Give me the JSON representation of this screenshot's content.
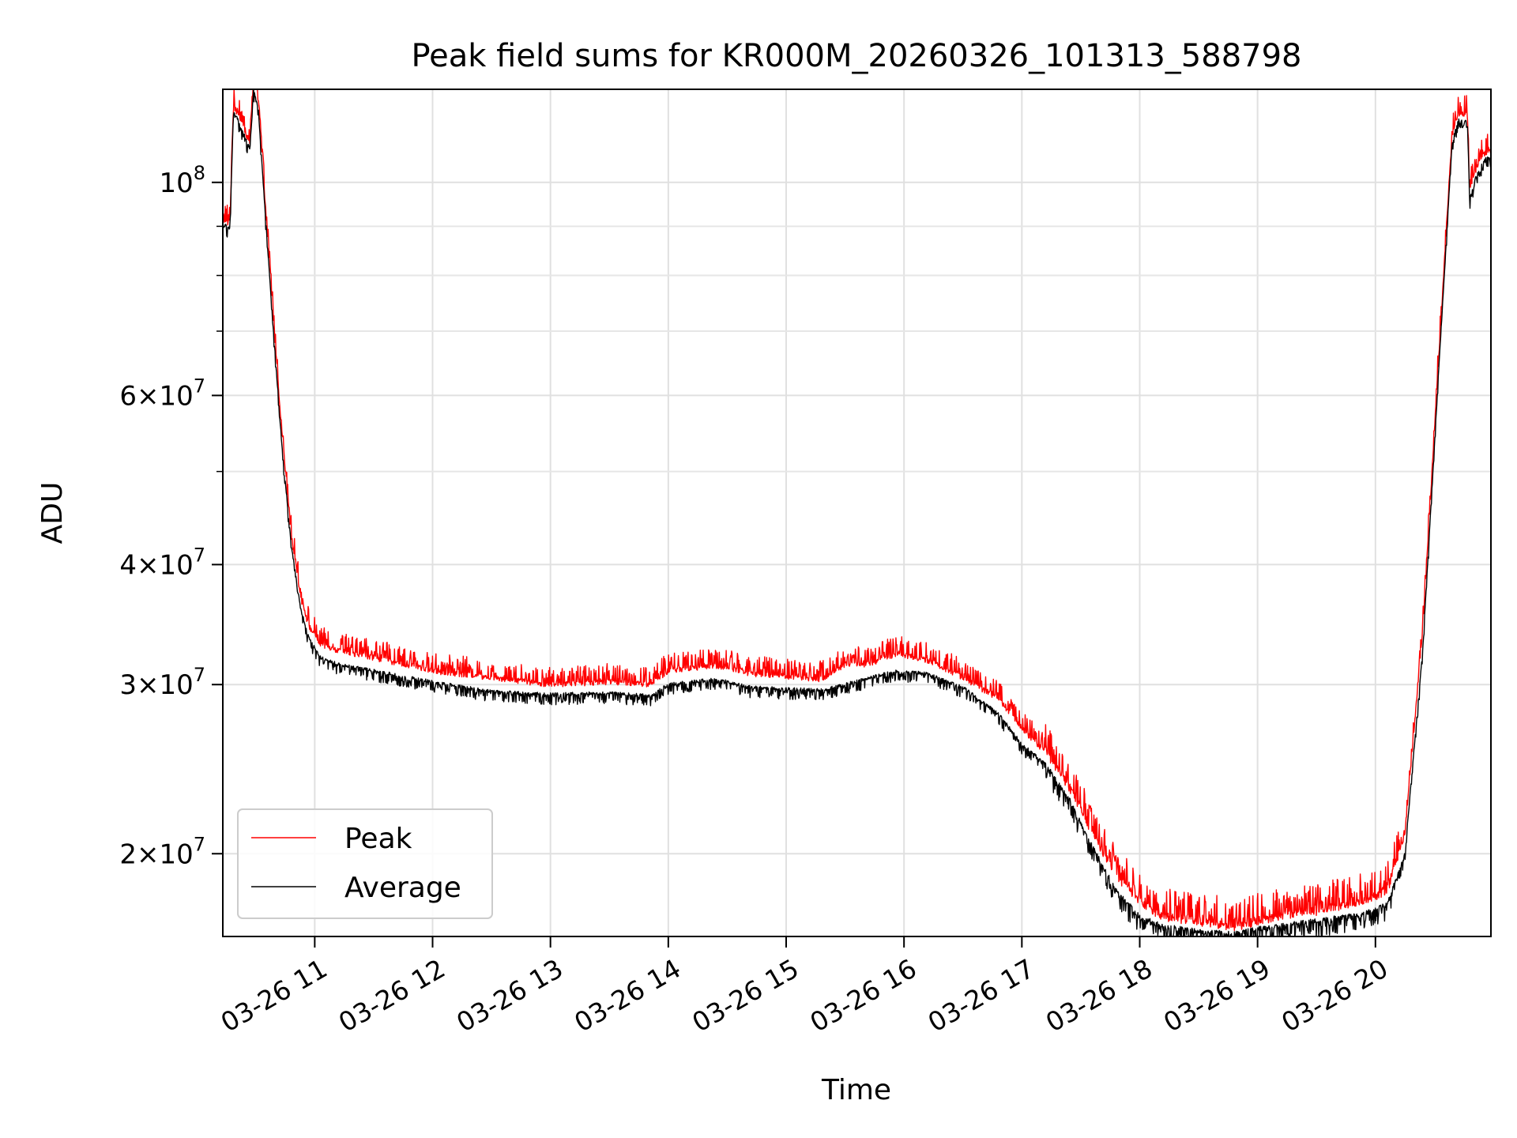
{
  "chart_data": {
    "type": "line",
    "title": "Peak field sums for KR000M_20260326_101313_588798",
    "xlabel": "Time",
    "ylabel": "ADU",
    "yscale": "log",
    "ylim": [
      16400000,
      125000000
    ],
    "xlim_hours": [
      10.22,
      20.98
    ],
    "grid": true,
    "legend_position": "lower-left",
    "x_ticks": [
      {
        "value": 11,
        "label": "03-26 11"
      },
      {
        "value": 12,
        "label": "03-26 12"
      },
      {
        "value": 13,
        "label": "03-26 13"
      },
      {
        "value": 14,
        "label": "03-26 14"
      },
      {
        "value": 15,
        "label": "03-26 15"
      },
      {
        "value": 16,
        "label": "03-26 16"
      },
      {
        "value": 17,
        "label": "03-26 17"
      },
      {
        "value": 18,
        "label": "03-26 18"
      },
      {
        "value": 19,
        "label": "03-26 19"
      },
      {
        "value": 20,
        "label": "03-26 20"
      }
    ],
    "y_ticks": [
      {
        "value": 100000000,
        "base": "10",
        "exp": "8",
        "mant": ""
      },
      {
        "value": 60000000,
        "mant": "6",
        "base": "10",
        "exp": "7"
      },
      {
        "value": 40000000,
        "mant": "4",
        "base": "10",
        "exp": "7"
      },
      {
        "value": 30000000,
        "mant": "3",
        "base": "10",
        "exp": "7"
      },
      {
        "value": 20000000,
        "mant": "2",
        "base": "10",
        "exp": "7"
      }
    ],
    "y_minor_ticks": [
      50000000,
      70000000,
      80000000,
      90000000
    ],
    "series": [
      {
        "name": "Peak",
        "color": "#ff0000",
        "jitter": 0.045,
        "points": [
          [
            10.22,
            91500000
          ],
          [
            10.28,
            90500000
          ],
          [
            10.31,
            120000000
          ],
          [
            10.36,
            117000000
          ],
          [
            10.42,
            112000000
          ],
          [
            10.45,
            110000000
          ],
          [
            10.48,
            127000000
          ],
          [
            10.52,
            122000000
          ],
          [
            10.58,
            95000000
          ],
          [
            10.65,
            72000000
          ],
          [
            10.72,
            55000000
          ],
          [
            10.8,
            43000000
          ],
          [
            10.88,
            37000000
          ],
          [
            10.95,
            34500000
          ],
          [
            11.05,
            33000000
          ],
          [
            11.2,
            32500000
          ],
          [
            11.5,
            32000000
          ],
          [
            12.0,
            31000000
          ],
          [
            12.5,
            30500000
          ],
          [
            13.0,
            30000000
          ],
          [
            13.5,
            30200000
          ],
          [
            13.85,
            30000000
          ],
          [
            14.0,
            31000000
          ],
          [
            14.4,
            31400000
          ],
          [
            14.7,
            30800000
          ],
          [
            15.0,
            30600000
          ],
          [
            15.3,
            30400000
          ],
          [
            15.5,
            31500000
          ],
          [
            15.7,
            31500000
          ],
          [
            15.95,
            32300000
          ],
          [
            16.2,
            31800000
          ],
          [
            16.5,
            30500000
          ],
          [
            16.8,
            29000000
          ],
          [
            17.0,
            27000000
          ],
          [
            17.2,
            25500000
          ],
          [
            17.4,
            23500000
          ],
          [
            17.6,
            21000000
          ],
          [
            17.8,
            19000000
          ],
          [
            18.0,
            17800000
          ],
          [
            18.2,
            17200000
          ],
          [
            18.5,
            17000000
          ],
          [
            18.8,
            16800000
          ],
          [
            19.0,
            17000000
          ],
          [
            19.3,
            17300000
          ],
          [
            19.6,
            17500000
          ],
          [
            19.9,
            17800000
          ],
          [
            20.1,
            18300000
          ],
          [
            20.25,
            21000000
          ],
          [
            20.4,
            34000000
          ],
          [
            20.55,
            70000000
          ],
          [
            20.65,
            112000000
          ],
          [
            20.7,
            118000000
          ],
          [
            20.78,
            118000000
          ],
          [
            20.8,
            98000000
          ],
          [
            20.85,
            103000000
          ],
          [
            20.92,
            107000000
          ],
          [
            20.98,
            108000000
          ]
        ]
      },
      {
        "name": "Average",
        "color": "#000000",
        "jitter": 0.025,
        "points": [
          [
            10.22,
            90500000
          ],
          [
            10.28,
            89500000
          ],
          [
            10.31,
            118500000
          ],
          [
            10.36,
            115500000
          ],
          [
            10.42,
            110500000
          ],
          [
            10.45,
            108500000
          ],
          [
            10.48,
            125000000
          ],
          [
            10.52,
            120000000
          ],
          [
            10.58,
            93000000
          ],
          [
            10.65,
            70000000
          ],
          [
            10.72,
            53500000
          ],
          [
            10.8,
            42000000
          ],
          [
            10.88,
            36000000
          ],
          [
            10.95,
            33500000
          ],
          [
            11.05,
            32000000
          ],
          [
            11.2,
            31500000
          ],
          [
            11.5,
            31000000
          ],
          [
            12.0,
            30200000
          ],
          [
            12.5,
            29500000
          ],
          [
            13.0,
            29300000
          ],
          [
            13.5,
            29400000
          ],
          [
            13.85,
            29200000
          ],
          [
            14.0,
            30000000
          ],
          [
            14.4,
            30400000
          ],
          [
            14.7,
            29800000
          ],
          [
            15.0,
            29700000
          ],
          [
            15.3,
            29600000
          ],
          [
            15.5,
            30000000
          ],
          [
            15.7,
            30500000
          ],
          [
            15.95,
            31000000
          ],
          [
            16.2,
            30800000
          ],
          [
            16.5,
            29800000
          ],
          [
            16.8,
            28000000
          ],
          [
            17.0,
            26000000
          ],
          [
            17.2,
            24800000
          ],
          [
            17.4,
            22800000
          ],
          [
            17.6,
            20300000
          ],
          [
            17.8,
            18300000
          ],
          [
            18.0,
            17200000
          ],
          [
            18.2,
            16800000
          ],
          [
            18.5,
            16600000
          ],
          [
            18.8,
            16500000
          ],
          [
            19.0,
            16700000
          ],
          [
            19.3,
            16900000
          ],
          [
            19.6,
            17100000
          ],
          [
            19.9,
            17300000
          ],
          [
            20.1,
            17700000
          ],
          [
            20.25,
            20000000
          ],
          [
            20.4,
            32500000
          ],
          [
            20.55,
            68000000
          ],
          [
            20.65,
            110000000
          ],
          [
            20.7,
            116000000
          ],
          [
            20.78,
            116000000
          ],
          [
            20.8,
            96000000
          ],
          [
            20.85,
            101000000
          ],
          [
            20.92,
            105500000
          ],
          [
            20.98,
            106500000
          ]
        ]
      }
    ]
  }
}
